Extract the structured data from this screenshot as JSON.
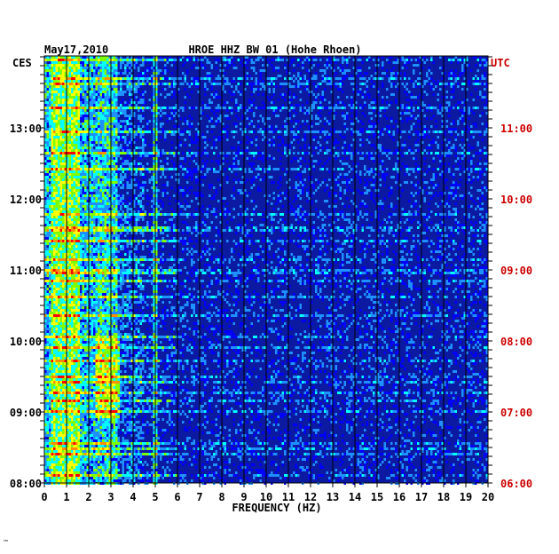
{
  "chart_data": {
    "type": "heatmap",
    "date": "May17,2010",
    "title": "HROE HHZ BW 01 (Hohe Rhoen)",
    "xlabel": "FREQUENCY (HZ)",
    "left_time_zone": "CES",
    "right_time_zone": "UTC",
    "xlim": [
      0,
      20
    ],
    "x_ticks": [
      "0",
      "1",
      "2",
      "3",
      "4",
      "5",
      "6",
      "7",
      "8",
      "9",
      "10",
      "11",
      "12",
      "13",
      "14",
      "15",
      "16",
      "17",
      "18",
      "19",
      "20"
    ],
    "left_ticks": [
      "13:00",
      "12:00",
      "11:00",
      "10:00",
      "09:00",
      "08:00"
    ],
    "right_ticks": [
      "11:00",
      "10:00",
      "09:00",
      "08:00",
      "07:00",
      "06:00"
    ],
    "colormap": [
      "#00008b",
      "#0000ff",
      "#1e90ff",
      "#00ffff",
      "#7fff00",
      "#ffff00",
      "#ff8c00",
      "#ff0000"
    ],
    "background_color": "#0b1aa0",
    "grid": "vertical lines at each 1 Hz",
    "strong_energy_bands_hz": [
      [
        0.2,
        1.6
      ],
      [
        2.4,
        3.2
      ],
      [
        4.8,
        5.1
      ]
    ]
  },
  "footer_mark": "™"
}
